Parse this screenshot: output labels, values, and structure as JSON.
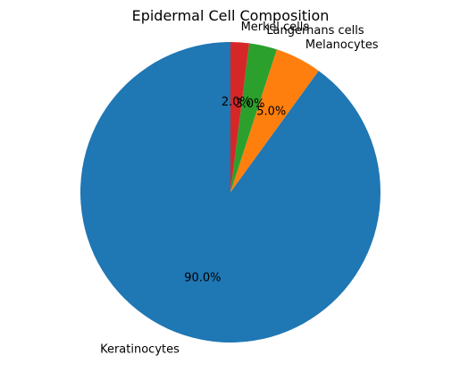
{
  "chart_data": {
    "type": "pie",
    "title": "Epidermal Cell Composition",
    "start_angle_deg": 90,
    "direction": "counterclockwise",
    "slices": [
      {
        "label": "Keratinocytes",
        "value": 90.0,
        "pct_label": "90.0%",
        "color": "#1f77b4"
      },
      {
        "label": "Melanocytes",
        "value": 5.0,
        "pct_label": "5.0%",
        "color": "#ff7f0e"
      },
      {
        "label": "Langerhans cells",
        "value": 3.0,
        "pct_label": "3.0%",
        "color": "#2ca02c"
      },
      {
        "label": "Merkel cells",
        "value": 2.0,
        "pct_label": "2.0%",
        "color": "#d62728"
      }
    ]
  }
}
